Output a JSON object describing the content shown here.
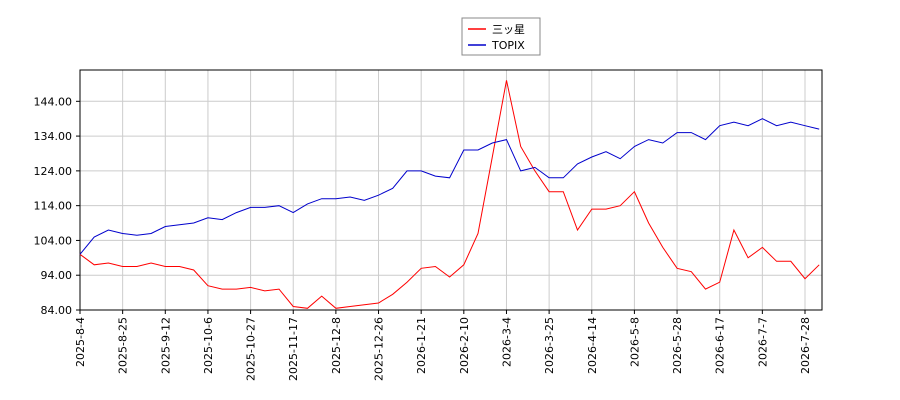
{
  "chart_data": {
    "type": "line",
    "categories": [
      "2025-8-4",
      null,
      null,
      "2025-8-25",
      null,
      null,
      "2025-9-12",
      null,
      null,
      "2025-10-6",
      null,
      null,
      "2025-10-27",
      null,
      null,
      "2025-11-17",
      null,
      null,
      "2025-12-8",
      null,
      null,
      "2025-12-26",
      null,
      null,
      "2026-1-21",
      null,
      null,
      "2026-2-10",
      null,
      null,
      "2026-3-4",
      null,
      null,
      "2026-3-25",
      null,
      null,
      "2026-4-14",
      null,
      null,
      "2026-5-8",
      null,
      null,
      "2026-5-28",
      null,
      null,
      "2026-6-17",
      null,
      null,
      "2026-7-7",
      null,
      null,
      "2026-7-28",
      null
    ],
    "series": [
      {
        "name": "三ッ星",
        "color": "#ff0000",
        "values": [
          100,
          97,
          97.5,
          96.5,
          96.5,
          97.5,
          96.5,
          96.5,
          95.5,
          91,
          90,
          90,
          90.5,
          89.5,
          90,
          85,
          84.5,
          88,
          84.5,
          85,
          85.5,
          86,
          88.5,
          92,
          96,
          96.5,
          93.5,
          97,
          106,
          128,
          150,
          131,
          124,
          118,
          118,
          107,
          113,
          113,
          114,
          118,
          109,
          102,
          96,
          95,
          90,
          92,
          107,
          99,
          102,
          98,
          98,
          93,
          97
        ]
      },
      {
        "name": "TOPIX",
        "color": "#0000cc",
        "values": [
          100,
          105,
          107,
          106,
          105.5,
          106,
          108,
          108.5,
          109,
          110.5,
          110,
          112,
          113.5,
          113.5,
          114,
          112,
          114.5,
          116,
          116,
          116.5,
          115.5,
          117,
          119,
          124,
          124,
          122.5,
          122,
          130,
          130,
          132,
          133,
          124,
          125,
          122,
          122,
          126,
          128,
          129.5,
          127.5,
          131,
          133,
          132,
          135,
          135,
          133,
          137,
          138,
          137,
          139,
          137,
          138,
          137,
          136
        ]
      }
    ],
    "ylim": [
      84,
      153
    ],
    "yticks": [
      {
        "value": 84,
        "label": "84.00"
      },
      {
        "value": 94,
        "label": "94.00"
      },
      {
        "value": 104,
        "label": "104.00"
      },
      {
        "value": 114,
        "label": "114.00"
      },
      {
        "value": 124,
        "label": "124.00"
      },
      {
        "value": 134,
        "label": "134.00"
      },
      {
        "value": 144,
        "label": "144.00"
      }
    ],
    "grid": true
  }
}
